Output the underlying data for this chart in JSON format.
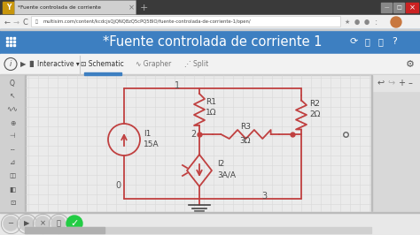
{
  "tab_text": "*Fuente controlada de corriente",
  "url": "multisim.com/content/kcdcjsQjQNQ8zQ5cPQ58IO/fuente-controlada-de-corriente-1/open/",
  "header_text": "*Fuente controlada de corriente 1",
  "node1_label": "1",
  "node2_label": "2",
  "node3_label": "3",
  "node0_label": "0",
  "R1_label": "R1",
  "R1_val": "1Ω",
  "R2_label": "R2",
  "R2_val": "2Ω",
  "R3_label": "R3",
  "R3_val": "3Ω",
  "I1_label": "I1",
  "I1_val": "15A",
  "I2_label": "I2",
  "I2_val": "3A/A",
  "tab_bar_color": "#d4a017",
  "tab_bar_bg": "#3a3a3a",
  "header_bg": "#3d7fc1",
  "toolbar_bg": "#f0f0f0",
  "schematic_bg": "#eaeaea",
  "grid_color": "#d8d8d8",
  "wire_color": "#c04040",
  "sidebar_bg": "#c8c8c8",
  "right_panel_bg": "#d0d0d0",
  "bottom_bar_bg": "#e8e8e8",
  "green_btn_color": "#22cc44",
  "text_color": "#555555"
}
